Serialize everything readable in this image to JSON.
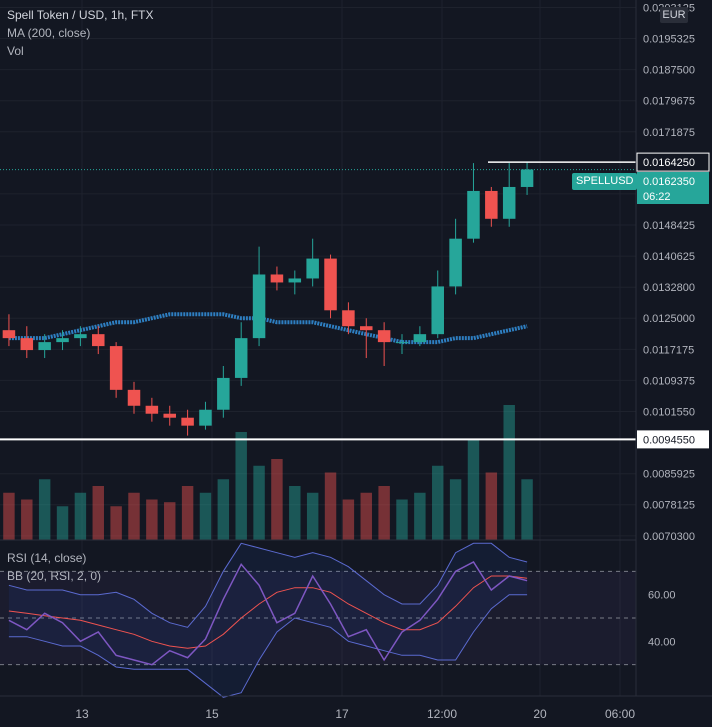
{
  "legend": {
    "title": "Spell Token / USD, 1h, FTX",
    "ma": "MA (200, close)",
    "vol": "Vol",
    "rsi": "RSI (14, close)",
    "bb": "BB (20, RSI, 2, 0)"
  },
  "currency": "EUR",
  "ticker": "SPELLUSD",
  "last_price": "0.0162350",
  "countdown": "06:22",
  "hline_high_label": "0.0164250",
  "hline_low_label": "0.0094550",
  "price_axis_labels": [
    "0.0203125",
    "0.0195325",
    "0.0187500",
    "0.0179675",
    "0.0171875",
    "0.0156250",
    "0.0148425",
    "0.0140625",
    "0.0132800",
    "0.0125000",
    "0.0117175",
    "0.0109375",
    "0.0101550",
    "0.0085925",
    "0.0078125",
    "0.0070300"
  ],
  "rsi_axis_labels": [
    "60.00",
    "40.00"
  ],
  "time_axis_labels": [
    "13",
    "15",
    "17",
    "12:00",
    "20",
    "06:00"
  ],
  "colors": {
    "up": "#26a69a",
    "down": "#ef5350",
    "ma": "#2e7fc2",
    "rsi": "#7e57c2",
    "bb_basis": "#ef5350",
    "bb_bands": "#5b6ad0",
    "hline": "#ffffff"
  },
  "chart_data": [
    {
      "type": "candlestick",
      "title": "Spell Token / USD, 1h, FTX",
      "ylim": [
        0.0068,
        0.0205
      ],
      "horizontal_lines": [
        0.016425,
        0.009455
      ],
      "x": [
        "12 18:00",
        "13 00:00",
        "13 06:00",
        "13 12:00",
        "13 18:00",
        "14 00:00",
        "14 06:00",
        "14 12:00",
        "14 18:00",
        "15 00:00",
        "15 06:00",
        "15 12:00",
        "15 18:00",
        "16 00:00",
        "16 06:00",
        "16 12:00",
        "16 18:00",
        "17 00:00",
        "17 06:00",
        "17 12:00",
        "17 18:00",
        "18 00:00",
        "18 06:00",
        "18 12:00",
        "18 18:00",
        "19 00:00",
        "19 06:00",
        "19 12:00",
        "19 18:00",
        "19 22:00"
      ],
      "open": [
        0.0122,
        0.012,
        0.0117,
        0.0119,
        0.012,
        0.0121,
        0.0118,
        0.0107,
        0.0103,
        0.0101,
        0.01,
        0.0098,
        0.0102,
        0.011,
        0.012,
        0.0136,
        0.0134,
        0.0135,
        0.014,
        0.0127,
        0.0123,
        0.0122,
        0.0119,
        0.0119,
        0.0121,
        0.0133,
        0.0145,
        0.0157,
        0.015,
        0.0158
      ],
      "close": [
        0.012,
        0.0117,
        0.0119,
        0.012,
        0.0121,
        0.0118,
        0.0107,
        0.0103,
        0.0101,
        0.01,
        0.0098,
        0.0102,
        0.011,
        0.012,
        0.0136,
        0.0134,
        0.0135,
        0.014,
        0.0127,
        0.0123,
        0.0122,
        0.0119,
        0.0119,
        0.0121,
        0.0133,
        0.0145,
        0.0157,
        0.015,
        0.0158,
        0.01624
      ],
      "high": [
        0.0126,
        0.0123,
        0.0121,
        0.0122,
        0.0123,
        0.0123,
        0.0119,
        0.0109,
        0.0105,
        0.0103,
        0.0102,
        0.0104,
        0.0113,
        0.0124,
        0.0143,
        0.0138,
        0.0137,
        0.0145,
        0.0141,
        0.0129,
        0.0125,
        0.0124,
        0.0121,
        0.0123,
        0.0137,
        0.015,
        0.0164,
        0.0158,
        0.0164,
        0.01642
      ],
      "low": [
        0.0118,
        0.0115,
        0.0115,
        0.0117,
        0.0118,
        0.0116,
        0.0105,
        0.0101,
        0.0099,
        0.0098,
        0.00955,
        0.0097,
        0.01,
        0.0108,
        0.0118,
        0.0132,
        0.0131,
        0.0133,
        0.0125,
        0.0121,
        0.0115,
        0.0113,
        0.0116,
        0.0118,
        0.012,
        0.0131,
        0.0144,
        0.0148,
        0.0148,
        0.0156
      ],
      "ma": [
        0.012,
        0.012,
        0.012,
        0.0121,
        0.0122,
        0.0123,
        0.0124,
        0.0124,
        0.0125,
        0.0126,
        0.0126,
        0.0126,
        0.0126,
        0.0125,
        0.0125,
        0.0124,
        0.0124,
        0.0124,
        0.0123,
        0.0122,
        0.0121,
        0.012,
        0.0119,
        0.0119,
        0.0119,
        0.012,
        0.012,
        0.0121,
        0.0122,
        0.0123
      ]
    },
    {
      "type": "bar",
      "title": "Vol",
      "x": [
        "12 18:00",
        "13 00:00",
        "13 06:00",
        "13 12:00",
        "13 18:00",
        "14 00:00",
        "14 06:00",
        "14 12:00",
        "14 18:00",
        "15 00:00",
        "15 06:00",
        "15 12:00",
        "15 18:00",
        "16 00:00",
        "16 06:00",
        "16 12:00",
        "16 18:00",
        "17 00:00",
        "17 06:00",
        "17 12:00",
        "17 18:00",
        "18 00:00",
        "18 06:00",
        "18 12:00",
        "18 18:00",
        "19 00:00",
        "19 06:00",
        "19 12:00",
        "19 18:00",
        "19 22:00"
      ],
      "values": [
        0.35,
        0.3,
        0.45,
        0.25,
        0.35,
        0.4,
        0.25,
        0.35,
        0.3,
        0.28,
        0.4,
        0.35,
        0.45,
        0.8,
        0.55,
        0.6,
        0.4,
        0.35,
        0.5,
        0.3,
        0.35,
        0.4,
        0.3,
        0.35,
        0.55,
        0.45,
        0.75,
        0.5,
        1.0,
        0.45
      ]
    },
    {
      "type": "line",
      "title": "RSI (14, close)",
      "ylim": [
        20,
        80
      ],
      "reference_lines": [
        70,
        50,
        30
      ],
      "x": [
        "12 18:00",
        "13 00:00",
        "13 06:00",
        "13 12:00",
        "13 18:00",
        "14 00:00",
        "14 06:00",
        "14 12:00",
        "14 18:00",
        "15 00:00",
        "15 06:00",
        "15 12:00",
        "15 18:00",
        "16 00:00",
        "16 06:00",
        "16 12:00",
        "16 18:00",
        "17 00:00",
        "17 06:00",
        "17 12:00",
        "17 18:00",
        "18 00:00",
        "18 06:00",
        "18 12:00",
        "18 18:00",
        "19 00:00",
        "19 06:00",
        "19 12:00",
        "19 18:00",
        "19 22:00"
      ],
      "series": [
        {
          "name": "RSI (14, close)",
          "values": [
            49,
            45,
            52,
            48,
            40,
            44,
            34,
            32,
            30,
            36,
            33,
            41,
            58,
            73,
            64,
            48,
            52,
            68,
            56,
            42,
            45,
            32,
            44,
            49,
            58,
            70,
            74,
            62,
            68,
            66
          ]
        },
        {
          "name": "BB basis",
          "values": [
            53,
            52,
            51,
            50,
            49,
            47,
            45,
            43,
            40,
            38,
            37,
            38,
            43,
            50,
            56,
            61,
            63,
            63,
            61,
            56,
            52,
            48,
            45,
            45,
            48,
            55,
            63,
            68,
            68,
            67
          ]
        },
        {
          "name": "BB upper",
          "values": [
            64,
            62,
            62,
            62,
            60,
            60,
            61,
            58,
            52,
            48,
            46,
            55,
            70,
            82,
            80,
            78,
            76,
            78,
            76,
            72,
            66,
            60,
            56,
            56,
            64,
            78,
            82,
            82,
            76,
            74
          ]
        },
        {
          "name": "BB lower",
          "values": [
            42,
            42,
            40,
            38,
            38,
            34,
            29,
            28,
            28,
            28,
            28,
            22,
            16,
            18,
            32,
            44,
            50,
            48,
            46,
            40,
            38,
            36,
            34,
            34,
            32,
            32,
            44,
            54,
            60,
            60
          ]
        }
      ]
    }
  ]
}
